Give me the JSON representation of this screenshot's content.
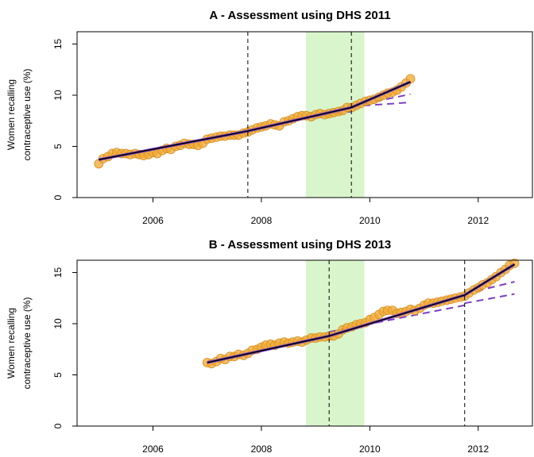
{
  "chart_data": [
    {
      "type": "scatter",
      "title": "A - Assessment using DHS 2011",
      "ylabel_lines": [
        "Women recalling",
        "contraceptive use (%)"
      ],
      "xlim": [
        2004.6,
        2013.0
      ],
      "ylim": [
        0,
        16.2
      ],
      "xticks": [
        2006,
        2008,
        2010,
        2012
      ],
      "yticks": [
        0,
        5,
        10,
        15
      ],
      "shaded_region": {
        "x": [
          2008.82,
          2009.9
        ],
        "color": "#d9f5cc"
      },
      "vlines": [
        2007.75,
        2009.66
      ],
      "colors": {
        "points": "#f0a830",
        "fit": "#000000",
        "trend": "#7d3fc7",
        "shade": "#d9f5cc"
      },
      "points": {
        "x": [
          2005.0,
          2005.08,
          2005.17,
          2005.25,
          2005.33,
          2005.42,
          2005.5,
          2005.58,
          2005.67,
          2005.75,
          2005.83,
          2005.92,
          2006.0,
          2006.08,
          2006.17,
          2006.25,
          2006.33,
          2006.42,
          2006.5,
          2006.58,
          2006.67,
          2006.75,
          2006.83,
          2006.92,
          2007.0,
          2007.08,
          2007.17,
          2007.25,
          2007.33,
          2007.42,
          2007.5,
          2007.58,
          2007.67,
          2007.75,
          2007.83,
          2007.92,
          2008.0,
          2008.08,
          2008.17,
          2008.25,
          2008.33,
          2008.42,
          2008.5,
          2008.58,
          2008.67,
          2008.75,
          2008.83,
          2008.92,
          2009.0,
          2009.08,
          2009.17,
          2009.25,
          2009.33,
          2009.42,
          2009.5,
          2009.58,
          2009.67,
          2009.75,
          2009.83,
          2009.92,
          2010.0,
          2010.08,
          2010.17,
          2010.25,
          2010.33,
          2010.42,
          2010.5,
          2010.58,
          2010.67,
          2010.75
        ],
        "y": [
          3.3,
          3.8,
          4.0,
          4.3,
          4.4,
          4.3,
          4.3,
          4.2,
          4.3,
          4.2,
          4.1,
          4.2,
          4.4,
          4.3,
          4.6,
          4.8,
          4.7,
          5.0,
          5.1,
          5.3,
          5.2,
          5.2,
          5.1,
          5.3,
          5.7,
          5.8,
          5.9,
          6.0,
          6.0,
          6.1,
          6.1,
          6.1,
          6.3,
          6.4,
          6.6,
          6.8,
          6.9,
          7.0,
          7.2,
          7.1,
          7.0,
          7.4,
          7.5,
          7.7,
          7.9,
          8.0,
          8.0,
          7.9,
          8.1,
          8.2,
          8.1,
          8.2,
          8.3,
          8.4,
          8.5,
          8.8,
          8.8,
          9.0,
          9.2,
          9.4,
          9.5,
          9.6,
          9.8,
          10.0,
          10.2,
          10.3,
          10.5,
          10.8,
          11.2,
          11.6
        ]
      },
      "fit_line": {
        "x": [
          2005.0,
          2007.75,
          2009.66,
          2010.75
        ],
        "y": [
          3.7,
          6.5,
          8.8,
          11.3
        ]
      },
      "trend_lines": [
        {
          "x": [
            2009.66,
            2010.75
          ],
          "y": [
            8.9,
            9.3
          ]
        },
        {
          "x": [
            2009.66,
            2010.75
          ],
          "y": [
            8.9,
            10.1
          ]
        },
        {
          "x": [
            2008.5,
            2009.66
          ],
          "y": [
            7.6,
            8.4
          ]
        }
      ]
    },
    {
      "type": "scatter",
      "title": "B - Assessment using DHS 2013",
      "ylabel_lines": [
        "Women recalling",
        "contraceptive use (%)"
      ],
      "xlim": [
        2004.6,
        2013.0
      ],
      "ylim": [
        0,
        16.2
      ],
      "xticks": [
        2006,
        2008,
        2010,
        2012
      ],
      "yticks": [
        0,
        5,
        10,
        15
      ],
      "shaded_region": {
        "x": [
          2008.82,
          2009.9
        ],
        "color": "#d9f5cc"
      },
      "vlines": [
        2009.25,
        2011.75
      ],
      "colors": {
        "points": "#f0a830",
        "fit": "#000000",
        "trend": "#7d3fc7",
        "shade": "#d9f5cc"
      },
      "points": {
        "x": [
          2007.0,
          2007.08,
          2007.17,
          2007.25,
          2007.33,
          2007.42,
          2007.5,
          2007.58,
          2007.67,
          2007.75,
          2007.83,
          2007.92,
          2008.0,
          2008.08,
          2008.17,
          2008.25,
          2008.33,
          2008.42,
          2008.5,
          2008.58,
          2008.67,
          2008.75,
          2008.83,
          2008.92,
          2009.0,
          2009.08,
          2009.17,
          2009.25,
          2009.33,
          2009.42,
          2009.5,
          2009.58,
          2009.67,
          2009.75,
          2009.83,
          2009.92,
          2010.0,
          2010.08,
          2010.17,
          2010.25,
          2010.33,
          2010.42,
          2010.5,
          2010.58,
          2010.67,
          2010.75,
          2010.83,
          2010.92,
          2011.0,
          2011.08,
          2011.17,
          2011.25,
          2011.33,
          2011.42,
          2011.5,
          2011.58,
          2011.67,
          2011.75,
          2011.83,
          2011.92,
          2012.0,
          2012.08,
          2012.17,
          2012.25,
          2012.33,
          2012.42,
          2012.5,
          2012.58,
          2012.67
        ],
        "y": [
          6.2,
          6.1,
          6.3,
          6.6,
          6.5,
          6.8,
          6.8,
          7.0,
          6.9,
          7.1,
          7.4,
          7.5,
          7.7,
          7.9,
          8.0,
          7.9,
          8.1,
          8.2,
          8.1,
          8.2,
          8.3,
          8.2,
          8.4,
          8.6,
          8.6,
          8.7,
          8.7,
          8.8,
          8.8,
          9.0,
          9.4,
          9.6,
          9.7,
          9.9,
          10.0,
          10.1,
          10.4,
          10.6,
          10.9,
          11.2,
          11.3,
          11.3,
          11.0,
          11.1,
          11.2,
          11.4,
          11.3,
          11.5,
          11.8,
          12.0,
          12.0,
          12.1,
          12.2,
          12.3,
          12.4,
          12.5,
          12.6,
          12.7,
          13.0,
          13.3,
          13.5,
          13.8,
          14.0,
          14.3,
          14.6,
          15.0,
          15.3,
          15.7,
          15.9
        ]
      },
      "fit_line": {
        "x": [
          2007.0,
          2009.25,
          2011.75,
          2012.67
        ],
        "y": [
          6.2,
          8.8,
          12.8,
          15.8
        ]
      },
      "trend_lines": [
        {
          "x": [
            2011.75,
            2012.67
          ],
          "y": [
            12.0,
            12.9
          ]
        },
        {
          "x": [
            2011.75,
            2012.67
          ],
          "y": [
            12.9,
            14.1
          ]
        },
        {
          "x": [
            2009.25,
            2011.75
          ],
          "y": [
            9.2,
            11.8
          ]
        }
      ]
    }
  ]
}
